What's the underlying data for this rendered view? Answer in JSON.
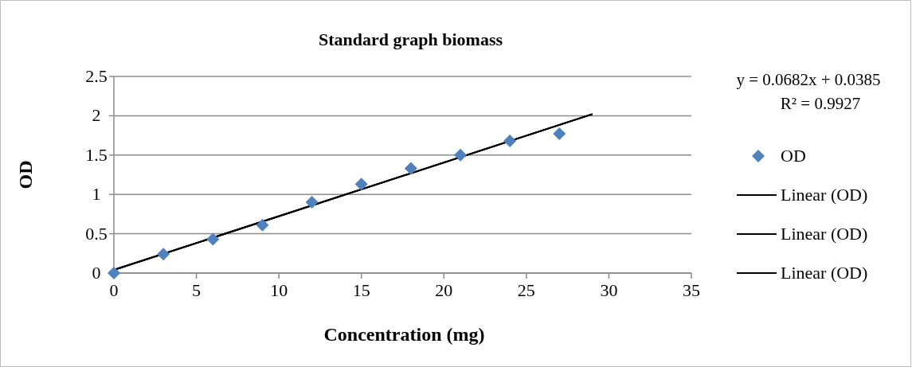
{
  "chart_data": {
    "type": "scatter",
    "title": "Standard graph biomass",
    "xlabel": "Concentration  (mg)",
    "ylabel": "OD",
    "xlim": [
      0,
      35
    ],
    "xticks": [
      0,
      5,
      10,
      15,
      20,
      25,
      30,
      35
    ],
    "ylim": [
      0,
      2.5
    ],
    "yticks": [
      0,
      0.5,
      1,
      1.5,
      2,
      2.5
    ],
    "grid": "y",
    "legend": "right",
    "series": [
      {
        "name": "OD",
        "color": "#4f81bd",
        "marker": "diamond",
        "x": [
          0,
          3,
          6,
          9,
          12,
          15,
          18,
          21,
          24,
          27
        ],
        "values": [
          0,
          0.24,
          0.43,
          0.61,
          0.9,
          1.13,
          1.33,
          1.5,
          1.68,
          1.77
        ]
      },
      {
        "name": "Linear (OD)",
        "type": "line",
        "color": "#000000",
        "line_style": "solid",
        "x": [
          0,
          29
        ],
        "values": [
          0.04,
          2.02
        ]
      },
      {
        "name": "Linear (OD)",
        "type": "line",
        "color": "#000000",
        "line_style": "solid",
        "x": [
          0,
          29
        ],
        "values": [
          0.04,
          2.02
        ]
      },
      {
        "name": "Linear (OD)",
        "type": "line",
        "color": "#000000",
        "line_style": "solid",
        "x": [
          0,
          29
        ],
        "values": [
          0.04,
          2.02
        ]
      }
    ],
    "annotations": [
      "y = 0.0682x + 0.0385",
      "R² = 0.9927"
    ]
  }
}
